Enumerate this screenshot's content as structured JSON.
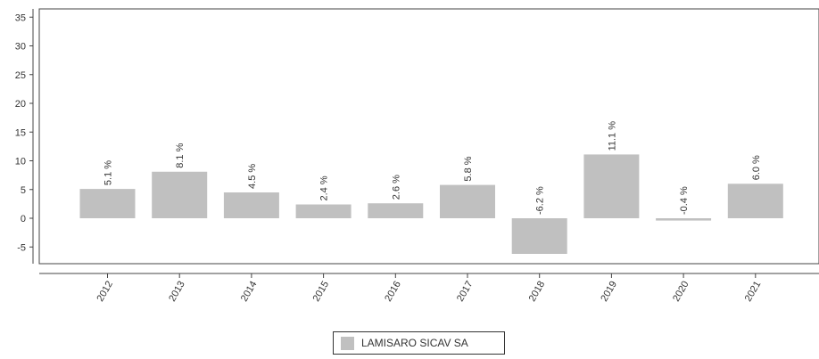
{
  "chart_data": {
    "type": "bar",
    "categories": [
      "2012",
      "2013",
      "2014",
      "2015",
      "2016",
      "2017",
      "2018",
      "2019",
      "2020",
      "2021"
    ],
    "series": [
      {
        "name": "LAMISARO SICAV SA",
        "values": [
          5.1,
          8.1,
          4.5,
          2.4,
          2.6,
          5.8,
          -6.2,
          11.1,
          -0.4,
          6.0
        ],
        "labels": [
          "5.1 %",
          "8.1 %",
          "4.5 %",
          "2.4 %",
          "2.6 %",
          "5.8 %",
          "-6.2 %",
          "11.1 %",
          "-0.4 %",
          "6.0 %"
        ],
        "color": "#c0c0c0"
      }
    ],
    "y_ticks": [
      "35",
      "30",
      "25",
      "20",
      "15",
      "10",
      "5",
      "0",
      "-5"
    ],
    "ylim": [
      -8,
      36
    ],
    "grid": false,
    "legend_position": "bottom-center"
  }
}
